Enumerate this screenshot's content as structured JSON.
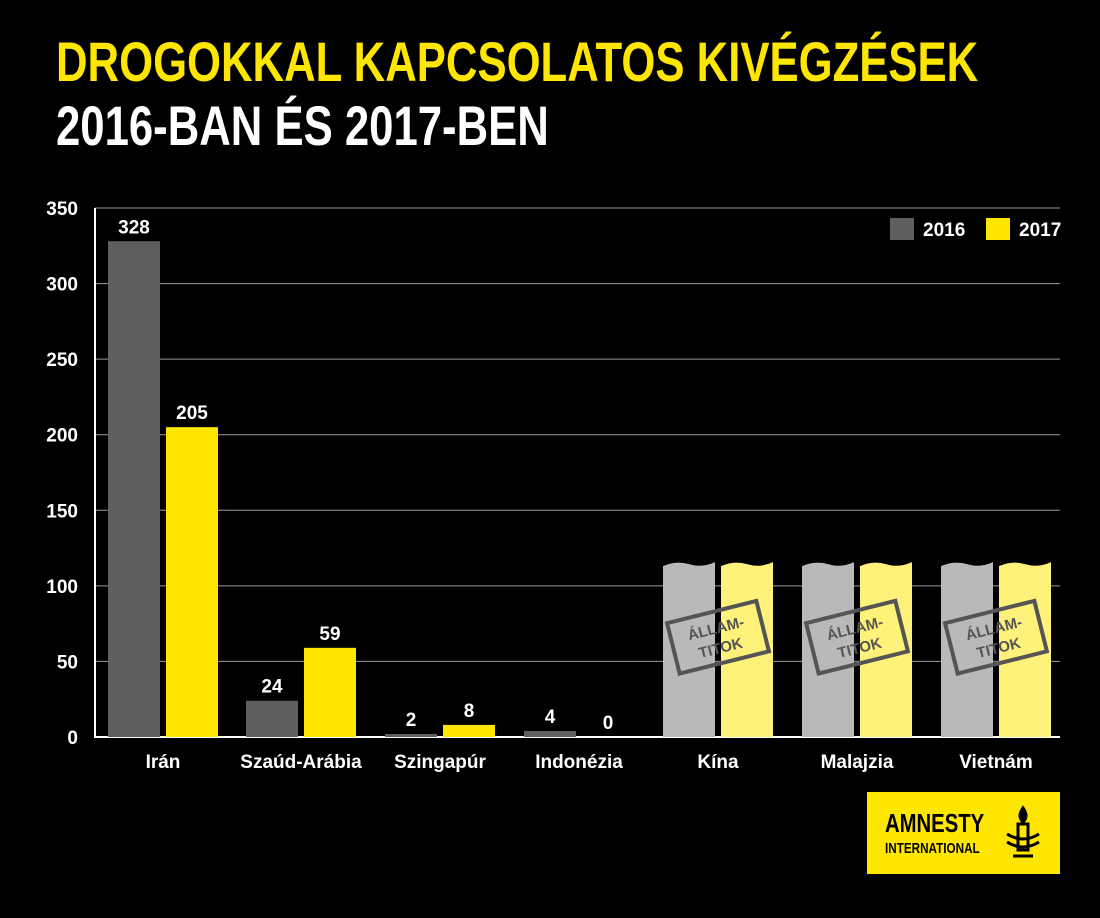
{
  "title_line1": "DROGOKKAL KAPCSOLATOS KIVÉGZÉSEK",
  "title_line2": "2016-BAN ÉS 2017-BEN",
  "colors": {
    "s2016": "#5f5f5f",
    "s2017": "#ffe600",
    "s2016_unknown": "#b9b9b9",
    "s2017_unknown": "#fff27a",
    "stamp": "#555555"
  },
  "chart_data": {
    "type": "bar",
    "title": "DROGOKKAL KAPCSOLATOS KIVÉGZÉSEK 2016-BAN ÉS 2017-BEN",
    "categories": [
      "Irán",
      "Szaúd-Arábia",
      "Szingapúr",
      "Indonézia",
      "Kína",
      "Malajzia",
      "Vietnám"
    ],
    "series": [
      {
        "name": "2016",
        "values": [
          328,
          24,
          2,
          4,
          null,
          null,
          null
        ],
        "labels": [
          "328",
          "24",
          "2",
          "4",
          "",
          "",
          ""
        ]
      },
      {
        "name": "2017",
        "values": [
          205,
          59,
          8,
          0,
          null,
          null,
          null
        ],
        "labels": [
          "205",
          "59",
          "8",
          "0",
          "",
          "",
          ""
        ]
      }
    ],
    "unknown_categories": [
      "Kína",
      "Malajzia",
      "Vietnám"
    ],
    "unknown_label": [
      "ÁLLAM-",
      "TITOK"
    ],
    "yticks": [
      0,
      50,
      100,
      150,
      200,
      250,
      300,
      350
    ],
    "ylim": [
      0,
      350
    ],
    "grid": true,
    "legend_position": "top-right"
  },
  "logo": {
    "line1": "AMNESTY",
    "line2": "INTERNATIONAL"
  }
}
